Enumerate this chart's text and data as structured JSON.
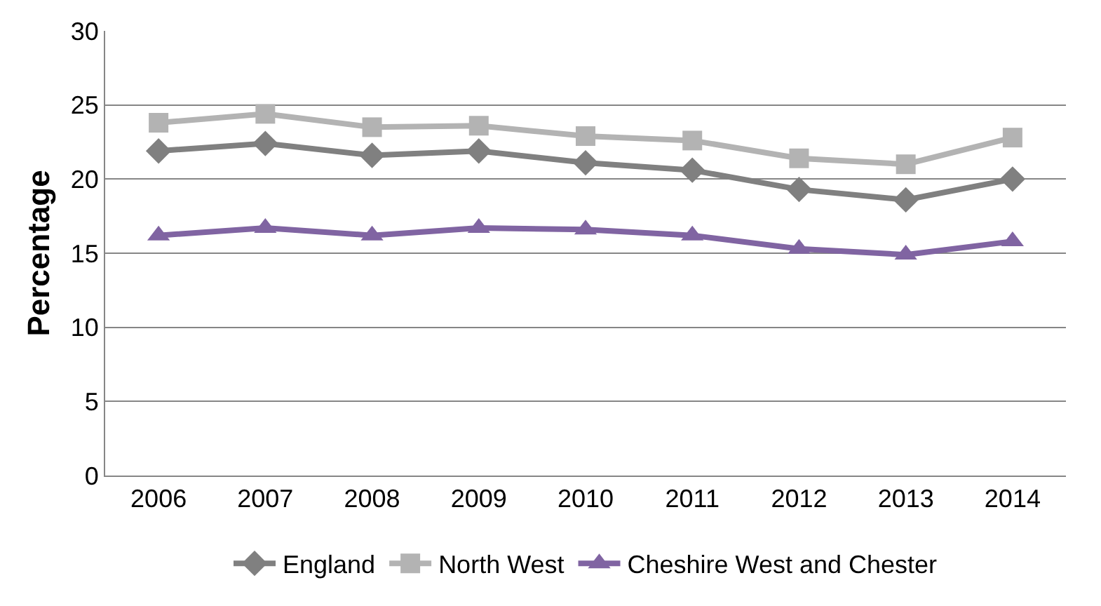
{
  "chart_data": {
    "type": "line",
    "ylabel": "Percentage",
    "categories": [
      "2006",
      "2007",
      "2008",
      "2009",
      "2010",
      "2011",
      "2012",
      "2013",
      "2014"
    ],
    "series": [
      {
        "name": "England",
        "color": "#808080",
        "marker": "diamond",
        "values": [
          21.9,
          22.4,
          21.6,
          21.9,
          21.1,
          20.6,
          19.3,
          18.6,
          20.0
        ]
      },
      {
        "name": "North West",
        "color": "#b3b3b3",
        "marker": "square",
        "values": [
          23.8,
          24.4,
          23.5,
          23.6,
          22.9,
          22.6,
          21.4,
          21.0,
          22.8
        ]
      },
      {
        "name": "Cheshire West and Chester",
        "color": "#8064a2",
        "marker": "triangle",
        "values": [
          16.2,
          16.7,
          16.2,
          16.7,
          16.6,
          16.2,
          15.3,
          14.9,
          15.8
        ]
      }
    ],
    "ylim": [
      0,
      30
    ],
    "yticks": [
      0,
      5,
      10,
      15,
      20,
      25,
      30
    ],
    "grid": "y",
    "legend": "bottom",
    "line_style": "solid"
  }
}
